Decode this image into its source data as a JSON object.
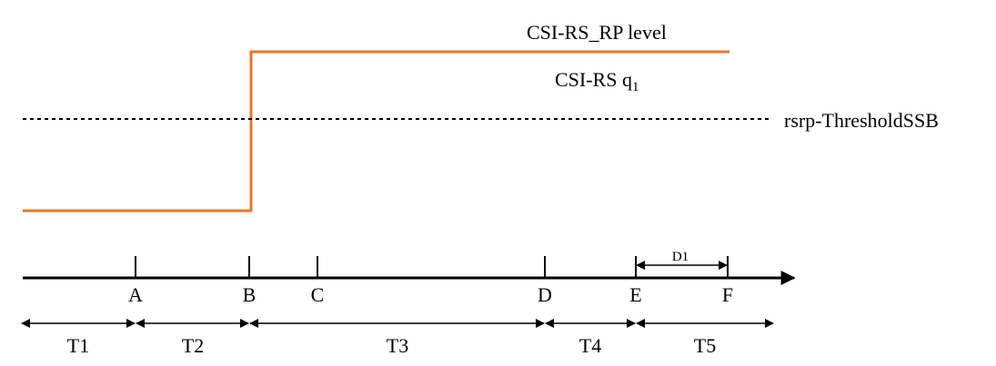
{
  "labels": {
    "rp_level": "CSI-RS_RP level",
    "q1_prefix": "CSI-RS q",
    "q1_sub": "1",
    "threshold": "rsrp-ThresholdSSB",
    "points": [
      "A",
      "B",
      "C",
      "D",
      "E",
      "F"
    ],
    "intervals": [
      "T1",
      "T2",
      "T3",
      "T4",
      "T5"
    ],
    "duration": "D1"
  },
  "colors": {
    "signal": "#E87722",
    "ink": "#000000"
  }
}
